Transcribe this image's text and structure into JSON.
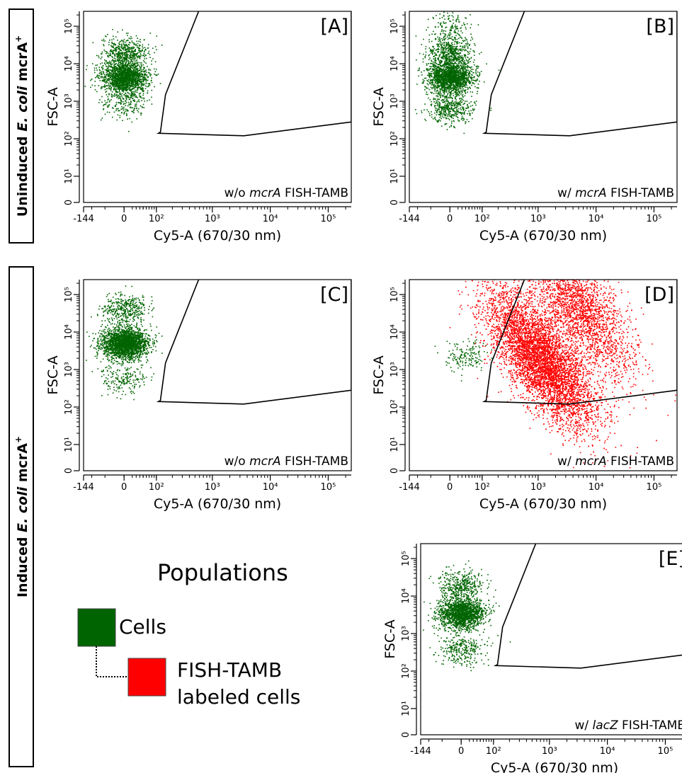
{
  "row_labels": [
    {
      "prefix": "Uninduced ",
      "italic": "E. coli",
      "suffix": " mcrA",
      "sup": "+"
    },
    {
      "prefix": "Induced ",
      "italic": "E. coli",
      "suffix": " mcrA",
      "sup": "+"
    }
  ],
  "legend": {
    "title": "Populations",
    "items": [
      {
        "label": "Cells",
        "color": "#006400"
      },
      {
        "label": "FISH-TAMB labeled cells",
        "label_lines": [
          "FISH-TAMB",
          "labeled cells"
        ],
        "color": "#ff0000"
      }
    ]
  },
  "colors": {
    "cells": "#006400",
    "labeled": "#ff0000",
    "axis": "#000000"
  },
  "chart_data": [
    {
      "type": "scatter",
      "panel_label": "[A]",
      "xlabel": "Cy5-A (670/30 nm)",
      "ylabel": "FSC-A",
      "x_scale": "biexponential",
      "y_scale": "log",
      "x_ticks": [
        {
          "label": "-144"
        },
        {
          "label": "0"
        },
        {
          "label": "10²"
        },
        {
          "label": "10³"
        },
        {
          "label": "10⁴"
        },
        {
          "label": "10⁵"
        }
      ],
      "y_ticks": [
        "0",
        "10¹",
        "10²",
        "10³",
        "10⁴",
        "10⁵"
      ],
      "ylim": [
        1,
        250000
      ],
      "caption_pre": "w/o ",
      "caption_italic": "mcrA",
      "caption_post": " FISH-TAMB",
      "gate": "FISH-TAMB labeled cells",
      "series": [
        {
          "name": "Cells",
          "color": "#006400",
          "clusters": [
            {
              "x_center": 0,
              "y_center": 4500,
              "count": 1700
            },
            {
              "x_center": 0,
              "y_center": 20000,
              "count": 500
            },
            {
              "x_center": 0,
              "y_center": 900,
              "count": 220
            }
          ]
        }
      ]
    },
    {
      "type": "scatter",
      "panel_label": "[B]",
      "xlabel": "Cy5-A (670/30 nm)",
      "ylabel": "FSC-A",
      "x_scale": "biexponential",
      "y_scale": "log",
      "x_ticks": [
        {
          "label": "-144"
        },
        {
          "label": "0"
        },
        {
          "label": "10²"
        },
        {
          "label": "10³"
        },
        {
          "label": "10⁴"
        },
        {
          "label": "10⁵"
        }
      ],
      "y_ticks": [
        "0",
        "10¹",
        "10²",
        "10³",
        "10⁴",
        "10⁵"
      ],
      "ylim": [
        1,
        250000
      ],
      "caption_pre": "w/ ",
      "caption_italic": "mcrA",
      "caption_post": " FISH-TAMB",
      "gate": "FISH-TAMB labeled cells",
      "series": [
        {
          "name": "Cells",
          "color": "#006400",
          "clusters": [
            {
              "x_center": 0,
              "y_center": 4500,
              "count": 1700
            },
            {
              "x_center": 0,
              "y_center": 20000,
              "count": 550
            },
            {
              "x_center": 0,
              "y_center": 700,
              "count": 450
            },
            {
              "x_center": 0,
              "y_center": 100000,
              "count": 150
            }
          ]
        }
      ]
    },
    {
      "type": "scatter",
      "panel_label": "[C]",
      "xlabel": "Cy5-A (670/30 nm)",
      "ylabel": "FSC-A",
      "x_scale": "biexponential",
      "y_scale": "log",
      "x_ticks": [
        {
          "label": "-144"
        },
        {
          "label": "0"
        },
        {
          "label": "10²"
        },
        {
          "label": "10³"
        },
        {
          "label": "10⁴"
        },
        {
          "label": "10⁵"
        }
      ],
      "y_ticks": [
        "0",
        "10¹",
        "10²",
        "10³",
        "10⁴",
        "10⁵"
      ],
      "ylim": [
        1,
        250000
      ],
      "caption_pre": "w/o ",
      "caption_italic": "mcrA",
      "caption_post": " FISH-TAMB",
      "gate": "FISH-TAMB labeled cells",
      "series": [
        {
          "name": "Cells",
          "color": "#006400",
          "clusters": [
            {
              "x_center": 0,
              "y_center": 5000,
              "count": 2200
            },
            {
              "x_center": 0,
              "y_center": 40000,
              "count": 400
            },
            {
              "x_center": 0,
              "y_center": 600,
              "count": 200
            }
          ]
        }
      ]
    },
    {
      "type": "scatter",
      "panel_label": "[D]",
      "xlabel": "Cy5-A (670/30 nm)",
      "ylabel": "FSC-A",
      "x_scale": "biexponential",
      "y_scale": "log",
      "x_ticks": [
        {
          "label": "-144"
        },
        {
          "label": "0"
        },
        {
          "label": "10²"
        },
        {
          "label": "10³"
        },
        {
          "label": "10⁴"
        },
        {
          "label": "10⁵"
        }
      ],
      "y_ticks": [
        "0",
        "10¹",
        "10²",
        "10³",
        "10⁴",
        "10⁵"
      ],
      "ylim": [
        1,
        250000
      ],
      "caption_pre": "w/ ",
      "caption_italic": "mcrA",
      "caption_post": " FISH-TAMB",
      "gate": "FISH-TAMB labeled cells",
      "series": [
        {
          "name": "Cells",
          "color": "#006400",
          "clusters": [
            {
              "x_center": 40,
              "y_center": 2500,
              "count": 160
            }
          ]
        },
        {
          "name": "FISH-TAMB labeled cells",
          "color": "#ff0000",
          "clusters": [
            {
              "x_center": 1100,
              "y_center": 2000,
              "count": 6000
            },
            {
              "x_center": 5000,
              "y_center": 50000,
              "count": 2500
            }
          ]
        }
      ]
    },
    {
      "type": "scatter",
      "panel_label": "[E]",
      "xlabel": "Cy5-A (670/30 nm)",
      "ylabel": "FSC-A",
      "x_scale": "biexponential",
      "y_scale": "log",
      "x_ticks": [
        {
          "label": "-144"
        },
        {
          "label": "0"
        },
        {
          "label": "10²"
        },
        {
          "label": "10³"
        },
        {
          "label": "10⁴"
        },
        {
          "label": "10⁵"
        }
      ],
      "y_ticks": [
        "0",
        "10¹",
        "10²",
        "10³",
        "10⁴",
        "10⁵"
      ],
      "ylim": [
        1,
        250000
      ],
      "caption_pre": "w/ ",
      "caption_italic": "lacZ",
      "caption_post": " FISH-TAMB",
      "gate": "FISH-TAMB labeled cells",
      "series": [
        {
          "name": "Cells",
          "color": "#006400",
          "clusters": [
            {
              "x_center": 0,
              "y_center": 3500,
              "count": 1600
            },
            {
              "x_center": 0,
              "y_center": 20000,
              "count": 400
            },
            {
              "x_center": 0,
              "y_center": 400,
              "count": 300
            }
          ]
        }
      ]
    }
  ]
}
